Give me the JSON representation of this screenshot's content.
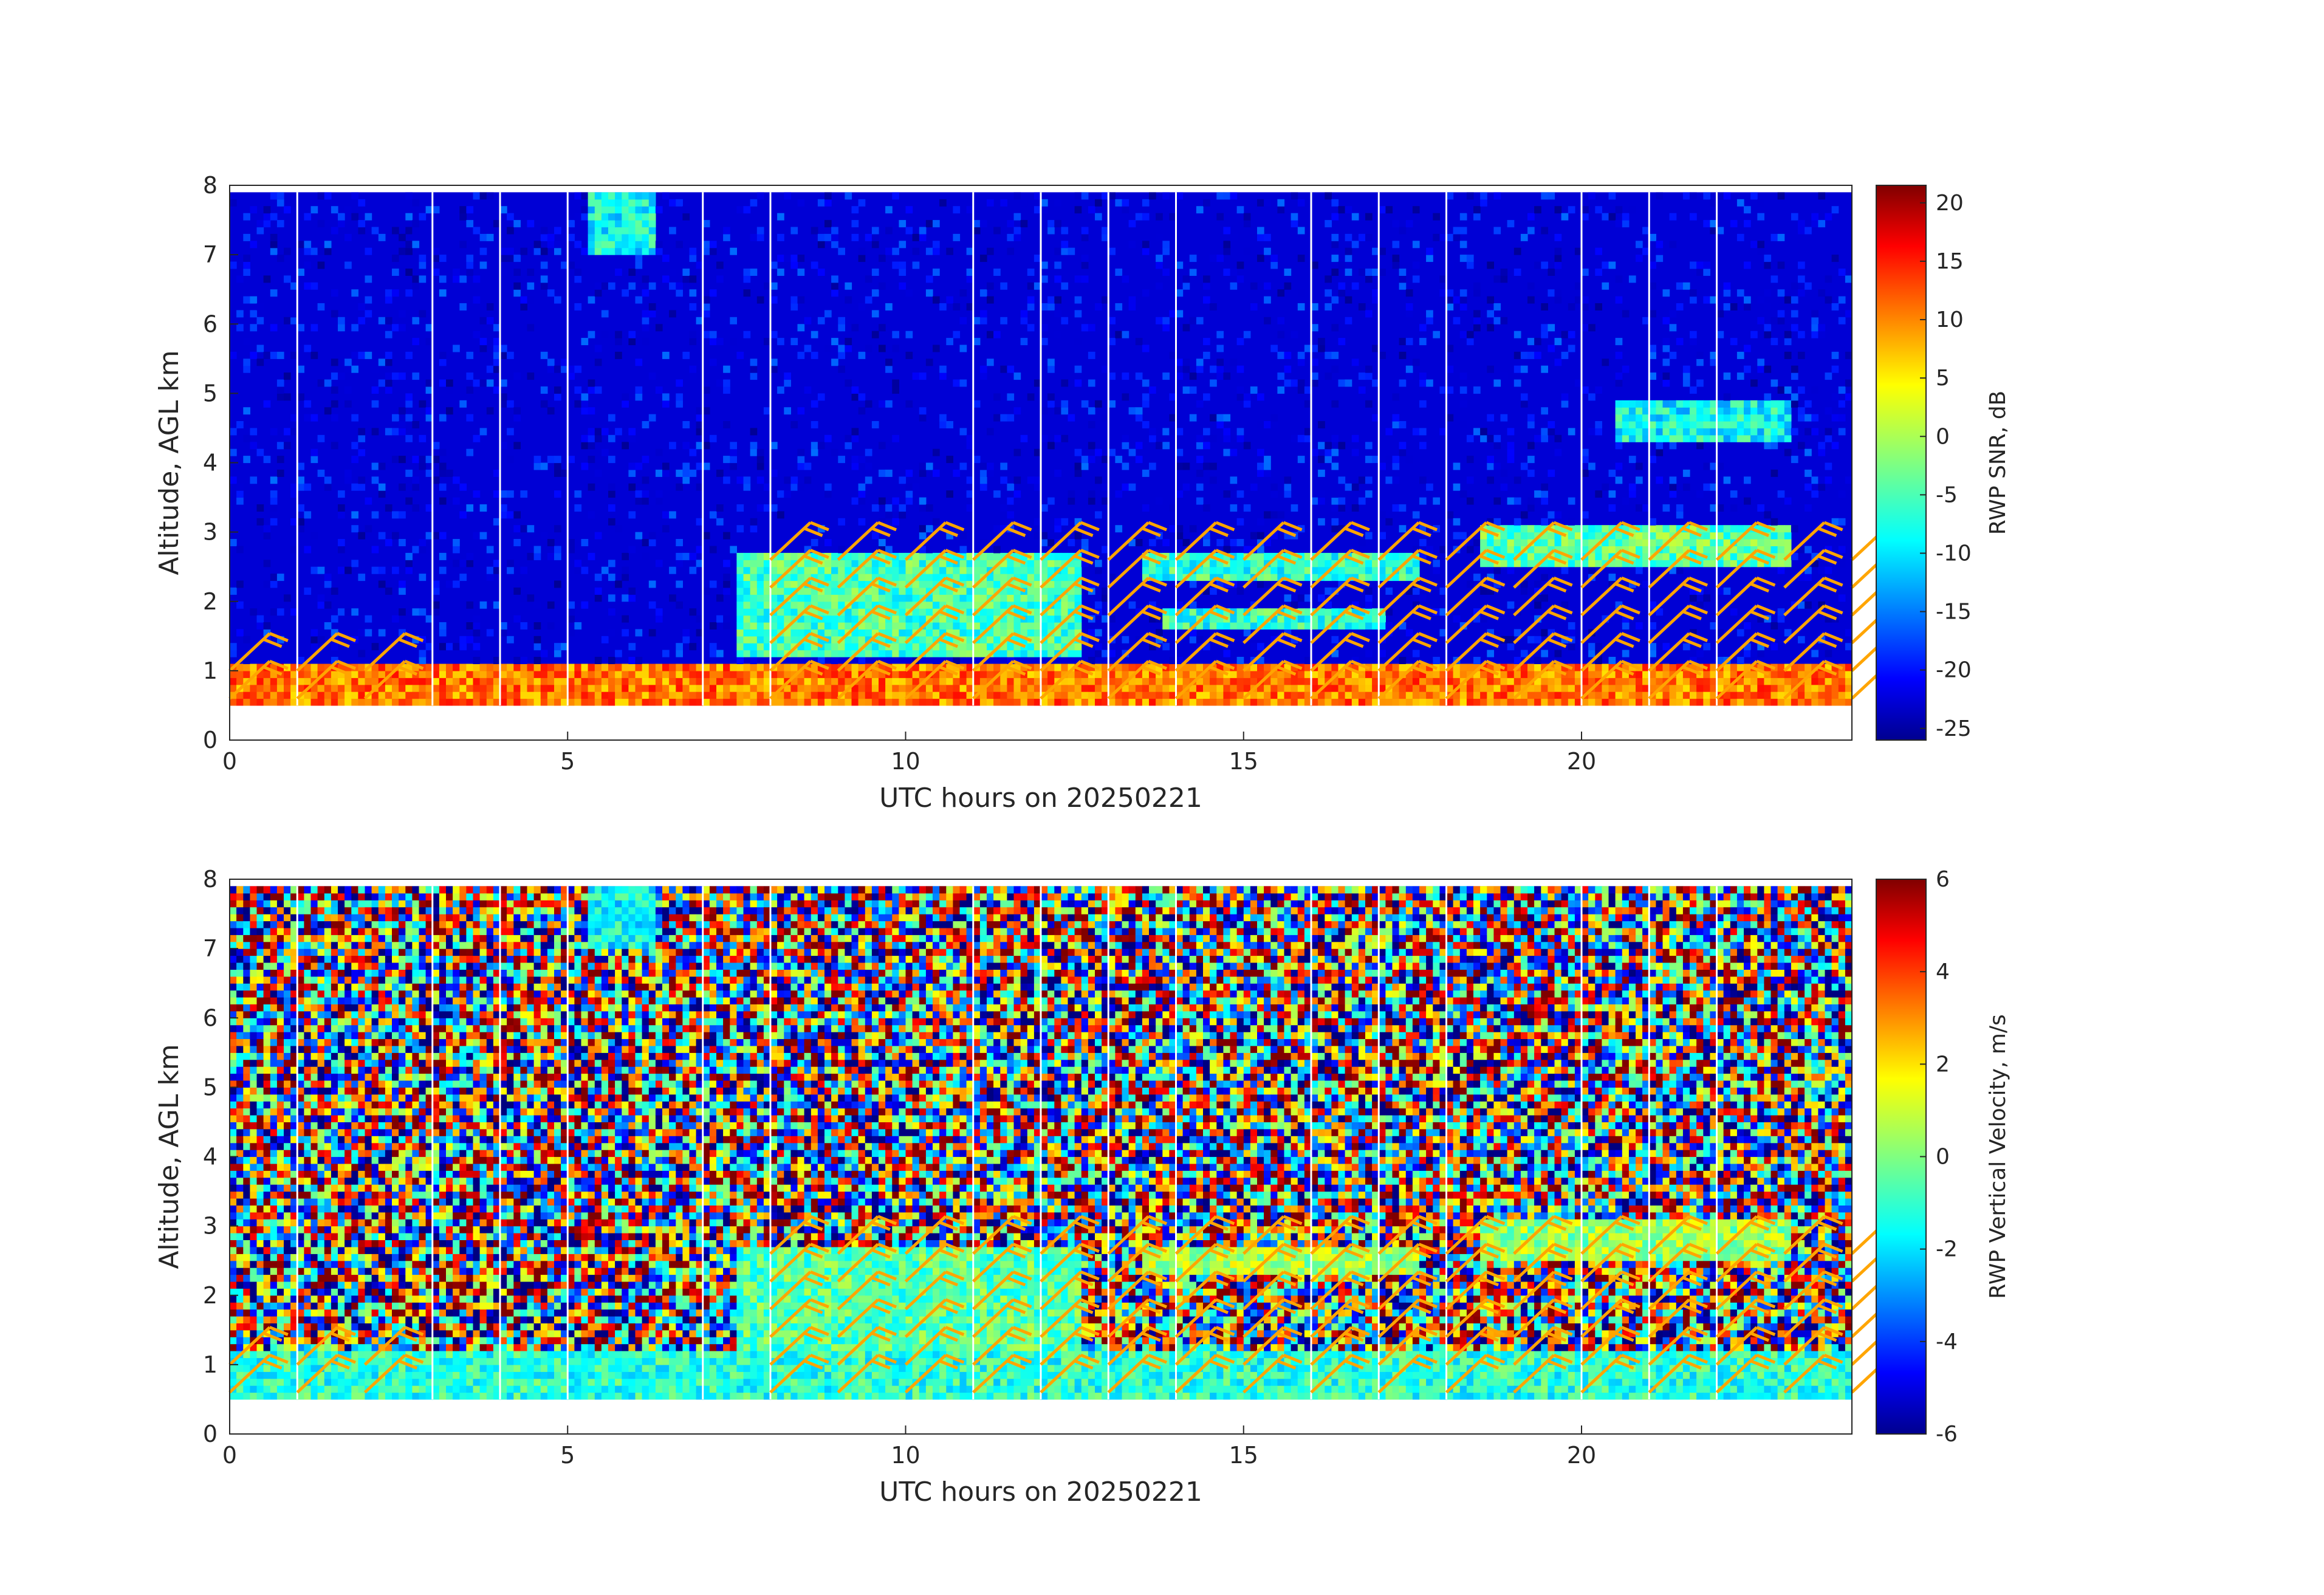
{
  "chart_data": [
    {
      "type": "heatmap",
      "variable": "RWP SNR",
      "xlabel": "UTC hours on 20250221",
      "ylabel": "Altitude, AGL km",
      "xlim": [
        0,
        24
      ],
      "ylim": [
        0,
        8
      ],
      "xticks": [
        0,
        5,
        10,
        15,
        20
      ],
      "yticks": [
        0,
        1,
        2,
        3,
        4,
        5,
        6,
        7,
        8
      ],
      "colorbar": {
        "label": "RWP SNR, dB",
        "range": [
          -26,
          21.5
        ],
        "ticks": [
          20,
          15,
          10,
          5,
          0,
          -5,
          -10,
          -15,
          -20,
          -25
        ],
        "colormap": "jet"
      },
      "data_gate_range_km": [
        0.5,
        7.9
      ],
      "gap_times_hours": [
        1,
        3,
        4,
        5,
        7,
        8,
        11,
        12,
        13,
        14,
        16,
        17,
        18,
        20,
        21,
        22
      ],
      "background_value_db": -22,
      "layers": [
        {
          "name": "boundary layer",
          "x_range": [
            0,
            24
          ],
          "y_range": [
            0.5,
            1.0
          ],
          "snr_db": 10
        },
        {
          "name": "elevated layer",
          "x_range": [
            7.5,
            12.5
          ],
          "y_range": [
            1.2,
            2.6
          ],
          "snr_db": -5
        },
        {
          "name": "elevated layer",
          "x_range": [
            13.5,
            17.5
          ],
          "y_range": [
            2.3,
            2.6
          ],
          "snr_db": -6
        },
        {
          "name": "elevated layer",
          "x_range": [
            13.8,
            17.0
          ],
          "y_range": [
            1.6,
            1.8
          ],
          "snr_db": -6
        },
        {
          "name": "elevated layer",
          "x_range": [
            18.5,
            23.0
          ],
          "y_range": [
            2.5,
            3.0
          ],
          "snr_db": -4
        },
        {
          "name": "elevated layer",
          "x_range": [
            20.5,
            23.0
          ],
          "y_range": [
            4.3,
            4.8
          ],
          "snr_db": -8
        },
        {
          "name": "upper echo",
          "x_range": [
            5.3,
            6.3
          ],
          "y_range": [
            7.0,
            7.9
          ],
          "snr_db": -8
        }
      ],
      "wind_barbs": {
        "color": "#ffa500",
        "times_hours": [
          0,
          1,
          2,
          3,
          4,
          5,
          6,
          7,
          8,
          9,
          10,
          11,
          12,
          13,
          14,
          15,
          16,
          17,
          18,
          19,
          20,
          21,
          22,
          23,
          24
        ]
      }
    },
    {
      "type": "heatmap",
      "variable": "RWP Vertical Velocity",
      "xlabel": "UTC hours on 20250221",
      "ylabel": "Altitude, AGL km",
      "xlim": [
        0,
        24
      ],
      "ylim": [
        0,
        8
      ],
      "xticks": [
        0,
        5,
        10,
        15,
        20
      ],
      "yticks": [
        0,
        1,
        2,
        3,
        4,
        5,
        6,
        7,
        8
      ],
      "colorbar": {
        "label": "RWP Vertical Velocity, m/s",
        "range": [
          -6,
          6
        ],
        "ticks": [
          6,
          4,
          2,
          0,
          -2,
          -4,
          -6
        ],
        "colormap": "jet"
      },
      "data_gate_range_km": [
        0.5,
        7.9
      ],
      "gap_times_hours": [
        1,
        3,
        4,
        5,
        7,
        8,
        11,
        12,
        13,
        14,
        16,
        17,
        18,
        20,
        21,
        22
      ],
      "background": "noise (values span -6 to 6 m/s)",
      "layers": [
        {
          "name": "boundary layer",
          "x_range": [
            0,
            24
          ],
          "y_range": [
            0.5,
            1.1
          ],
          "velocity_ms": -1.0
        },
        {
          "name": "elevated layer",
          "x_range": [
            7.5,
            12.5
          ],
          "y_range": [
            1.2,
            2.6
          ],
          "velocity_ms": -0.5
        },
        {
          "name": "elevated layer",
          "x_range": [
            13.5,
            17.5
          ],
          "y_range": [
            2.3,
            2.6
          ],
          "velocity_ms": 0.5
        },
        {
          "name": "elevated layer",
          "x_range": [
            18.5,
            23.0
          ],
          "y_range": [
            2.5,
            3.0
          ],
          "velocity_ms": 0.3
        },
        {
          "name": "upper echo",
          "x_range": [
            5.3,
            6.3
          ],
          "y_range": [
            7.0,
            7.9
          ],
          "velocity_ms": -1.5
        }
      ],
      "wind_barbs": {
        "color": "#ffa500",
        "times_hours": [
          0,
          1,
          2,
          3,
          4,
          5,
          6,
          7,
          8,
          9,
          10,
          11,
          12,
          13,
          14,
          15,
          16,
          17,
          18,
          19,
          20,
          21,
          22,
          23,
          24
        ]
      }
    }
  ]
}
